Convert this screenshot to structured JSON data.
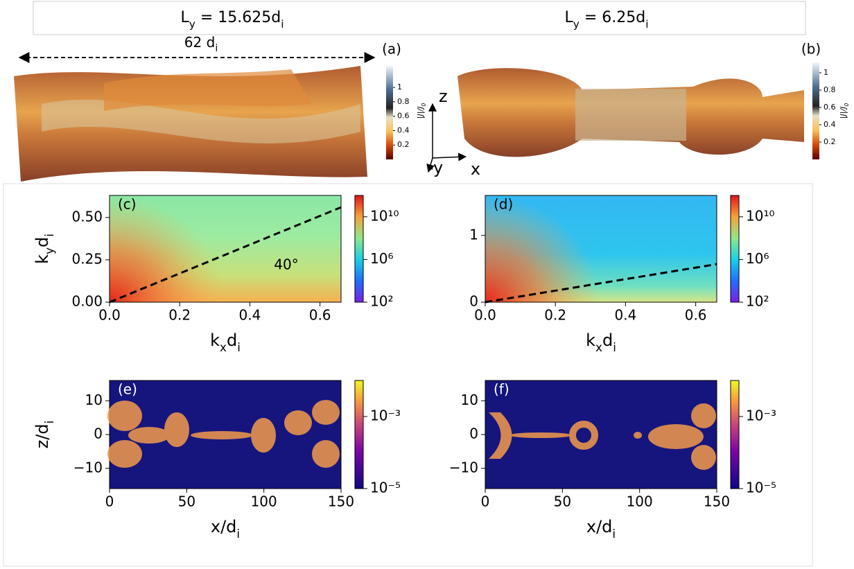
{
  "header": {
    "left": [
      "L",
      "y",
      " = 15.625d",
      "i"
    ],
    "right": [
      "L",
      "y",
      " = 6.25d",
      "i"
    ]
  },
  "renders": [
    {
      "label": "(a)",
      "length_label": [
        "62 d",
        "i"
      ],
      "colorbar": {
        "label": [
          "|J|/J",
          "0"
        ],
        "lim": [
          0,
          1.3
        ],
        "ticks": [
          0.2,
          0.4,
          0.6,
          0.8,
          1
        ]
      }
    },
    {
      "label": "(b)",
      "colorbar": {
        "label": [
          "|J|/J",
          "0"
        ],
        "lim": [
          0,
          1.12
        ],
        "ticks": [
          0.2,
          0.4,
          0.6,
          0.8,
          1
        ]
      }
    }
  ],
  "axes_labels": {
    "z": "z",
    "x": "x",
    "y": "-y"
  },
  "chart_data": [
    {
      "type": "heatmap",
      "label": "(c)",
      "xlabel": [
        "k",
        "x",
        "d",
        "i"
      ],
      "ylabel": [
        "k",
        "y",
        "d",
        "i"
      ],
      "xlim": [
        0,
        0.66
      ],
      "ylim": [
        0,
        0.63
      ],
      "xticks": [
        {
          "value": 0,
          "label": "0.0"
        },
        0.2,
        0.4,
        0.6
      ],
      "yticks": [
        {
          "value": 0,
          "label": "0.00"
        },
        0.25,
        {
          "value": 0.5,
          "label": "0.50"
        }
      ],
      "colorbar": {
        "log": true,
        "lim": [
          100,
          1000000000000
        ],
        "ticks": [
          {
            "value": 100,
            "label": "10²"
          },
          {
            "value": 1000000,
            "label": "10⁶"
          },
          {
            "value": 10000000000,
            "label": "10¹⁰"
          }
        ]
      },
      "lines": [
        {
          "x": [
            0,
            0.66
          ],
          "y": [
            0,
            0.56
          ]
        }
      ],
      "annotation": "40°"
    },
    {
      "type": "heatmap",
      "label": "(d)",
      "xlabel": [
        "k",
        "x",
        "d",
        "i"
      ],
      "xlim": [
        0,
        0.66
      ],
      "ylim": [
        0,
        1.6
      ],
      "xticks": [
        {
          "value": 0,
          "label": "0.0"
        },
        0.2,
        0.4,
        0.6
      ],
      "yticks": [
        0,
        1
      ],
      "colorbar": {
        "log": true,
        "lim": [
          100,
          1000000000000
        ],
        "ticks": [
          {
            "value": 100,
            "label": "10²"
          },
          {
            "value": 1000000,
            "label": "10⁶"
          },
          {
            "value": 10000000000,
            "label": "10¹⁰"
          }
        ]
      },
      "lines": [
        {
          "x": [
            0,
            0.66
          ],
          "y": [
            0,
            0.57
          ]
        }
      ]
    },
    {
      "type": "heatmap",
      "label": "(e)",
      "xlabel": [
        "x/d",
        "i"
      ],
      "ylabel": [
        "z/d",
        "i"
      ],
      "xlim": [
        0,
        150
      ],
      "ylim": [
        -16,
        16
      ],
      "xticks": [
        0,
        50,
        100,
        150
      ],
      "yticks": [
        {
          "value": -10,
          "label": "−10"
        },
        0,
        10
      ],
      "colorbar": {
        "log": true,
        "lim": [
          1e-05,
          0.01
        ],
        "ticks": [
          {
            "value": 1e-05,
            "label": "10⁻⁵"
          },
          {
            "value": 0.001,
            "label": "10⁻³"
          }
        ]
      }
    },
    {
      "type": "heatmap",
      "label": "(f)",
      "xlabel": [
        "x/d",
        "i"
      ],
      "xlim": [
        0,
        150
      ],
      "ylim": [
        -16,
        16
      ],
      "xticks": [
        0,
        50,
        100,
        150
      ],
      "yticks": [
        {
          "value": -10,
          "label": "−10"
        },
        0,
        10
      ],
      "colorbar": {
        "log": true,
        "lim": [
          1e-05,
          0.01
        ],
        "ticks": [
          {
            "value": 1e-05,
            "label": "10⁻⁵"
          },
          {
            "value": 0.001,
            "label": "10⁻³"
          }
        ]
      }
    }
  ]
}
